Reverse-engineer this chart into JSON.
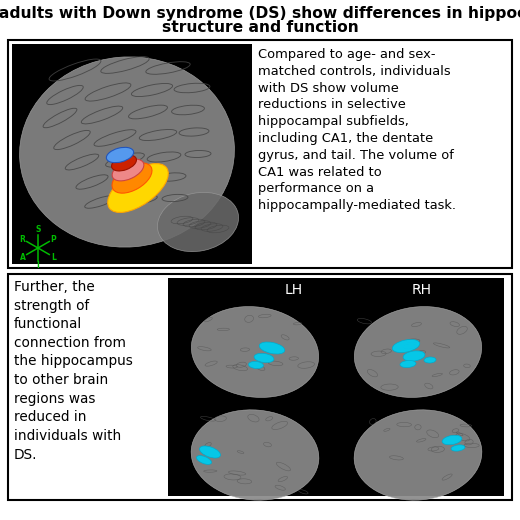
{
  "title_line1": "Young adults with Down syndrome (DS) show differences in hippocampal",
  "title_line2": "structure and function",
  "top_text": "Compared to age- and sex-\nmatched controls, individuals\nwith DS show volume\nreductions in selective\nhippocampal subfields,\nincluding CA1, the dentate\ngyrus, and tail. The volume of\nCA1 was related to\nperformance on a\nhippocampally-mediated task.",
  "bottom_text": "Further, the\nstrength of\nfunctional\nconnection from\nthe hippocampus\nto other brain\nregions was\nreduced in\nindividuals with\nDS.",
  "lh_label": "LH",
  "rh_label": "RH",
  "bg_color": "#ffffff",
  "title_fontsize": 11.2,
  "body_fontsize": 9.4
}
